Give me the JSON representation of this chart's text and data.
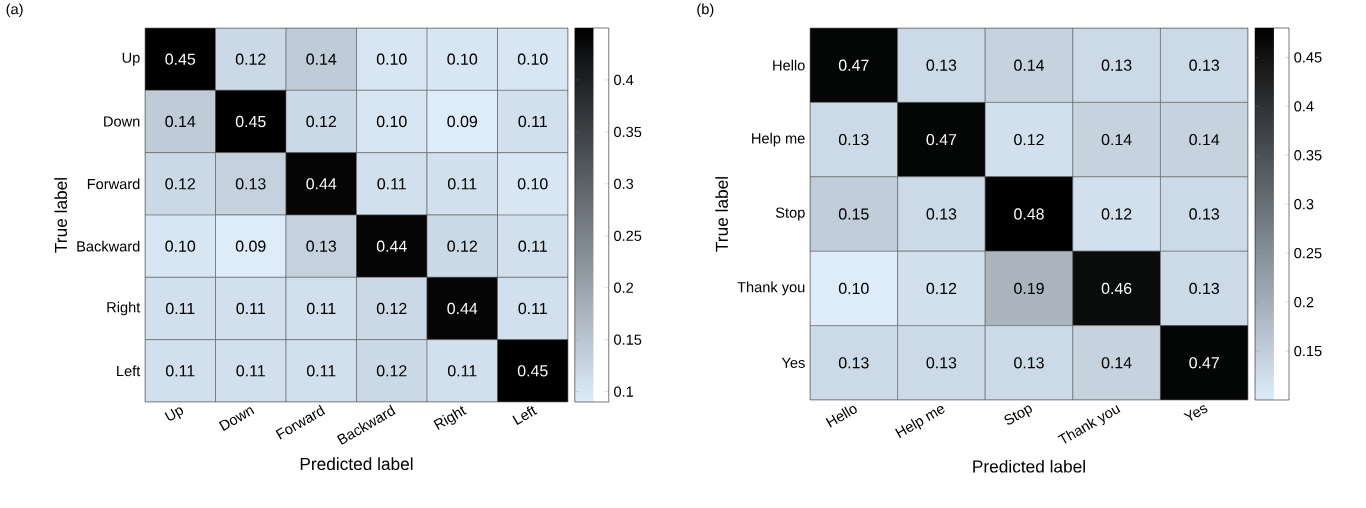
{
  "chart_data": [
    {
      "type": "heatmap",
      "title": "(a)",
      "xlabel": "Predicted label",
      "ylabel": "True label",
      "categories": [
        "Up",
        "Down",
        "Forward",
        "Backward",
        "Right",
        "Left"
      ],
      "y_categories": [
        "Up",
        "Down",
        "Forward",
        "Backward",
        "Right",
        "Left"
      ],
      "cells": [
        [
          0.45,
          0.12,
          0.14,
          0.1,
          0.1,
          0.1
        ],
        [
          0.14,
          0.45,
          0.12,
          0.1,
          0.09,
          0.11
        ],
        [
          0.12,
          0.13,
          0.44,
          0.11,
          0.11,
          0.1
        ],
        [
          0.1,
          0.09,
          0.13,
          0.44,
          0.12,
          0.11
        ],
        [
          0.11,
          0.11,
          0.11,
          0.12,
          0.44,
          0.11
        ],
        [
          0.11,
          0.11,
          0.11,
          0.12,
          0.11,
          0.45
        ]
      ],
      "cell_labels": [
        [
          "0.45",
          "0.12",
          "0.14",
          "0.10",
          "0.10",
          "0.10"
        ],
        [
          "0.14",
          "0.45",
          "0.12",
          "0.10",
          "0.09",
          "0.11"
        ],
        [
          "0.12",
          "0.13",
          "0.44",
          "0.11",
          "0.11",
          "0.10"
        ],
        [
          "0.10",
          "0.09",
          "0.13",
          "0.44",
          "0.12",
          "0.11"
        ],
        [
          "0.11",
          "0.11",
          "0.11",
          "0.12",
          "0.44",
          "0.11"
        ],
        [
          "0.11",
          "0.11",
          "0.11",
          "0.12",
          "0.11",
          "0.45"
        ]
      ],
      "clim": [
        0.09,
        0.45
      ],
      "cticks": [
        0.1,
        0.15,
        0.2,
        0.25,
        0.3,
        0.35,
        0.4
      ]
    },
    {
      "type": "heatmap",
      "title": "(b)",
      "xlabel": "Predicted label",
      "ylabel": "True label",
      "categories": [
        "Hello",
        "Help me",
        "Stop",
        "Thank you",
        "Yes"
      ],
      "y_categories": [
        "Hello",
        "Help me",
        "Stop",
        "Thank you",
        "Yes"
      ],
      "cells": [
        [
          0.47,
          0.13,
          0.14,
          0.13,
          0.13
        ],
        [
          0.13,
          0.47,
          0.12,
          0.14,
          0.14
        ],
        [
          0.15,
          0.13,
          0.48,
          0.12,
          0.13
        ],
        [
          0.1,
          0.12,
          0.19,
          0.46,
          0.13
        ],
        [
          0.13,
          0.13,
          0.13,
          0.14,
          0.47
        ]
      ],
      "cell_labels": [
        [
          "0.47",
          "0.13",
          "0.14",
          "0.13",
          "0.13"
        ],
        [
          "0.13",
          "0.47",
          "0.12",
          "0.14",
          "0.14"
        ],
        [
          "0.15",
          "0.13",
          "0.48",
          "0.12",
          "0.13"
        ],
        [
          "0.10",
          "0.12",
          "0.19",
          "0.46",
          "0.13"
        ],
        [
          "0.13",
          "0.13",
          "0.13",
          "0.14",
          "0.47"
        ]
      ],
      "clim": [
        0.1,
        0.48
      ],
      "cticks": [
        0.15,
        0.2,
        0.25,
        0.3,
        0.35,
        0.4,
        0.45
      ]
    }
  ]
}
